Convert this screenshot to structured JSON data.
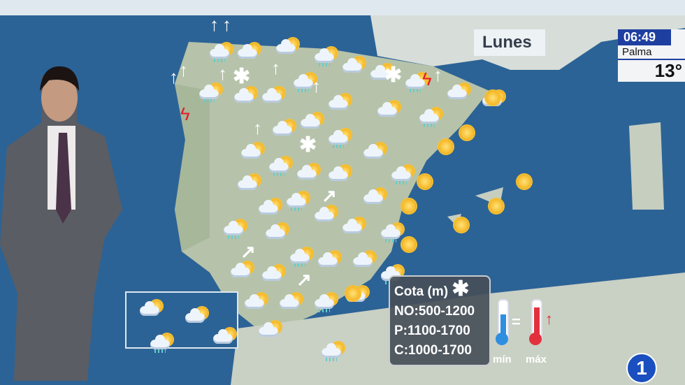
{
  "day_label": "Lunes",
  "clock": {
    "time": "06:49",
    "city": "Palma",
    "temperature": "13°"
  },
  "snow_level": {
    "title": "Cota (m)",
    "rows": [
      "NO:500-1200",
      "P:1100-1700",
      "C:1000-1700"
    ]
  },
  "legend": {
    "min_label": "mín",
    "max_label": "máx",
    "min_color": "#2e8fe0",
    "max_color": "#e2313d"
  },
  "channel_logo": "1",
  "weather_icons": [
    "cloud-sun-rain",
    "cloud-sun-rain",
    "sun",
    "cloud-rain",
    "sun",
    "sun",
    "partly-cloudy",
    "snow",
    "lightning",
    "wind-arrow-north"
  ]
}
